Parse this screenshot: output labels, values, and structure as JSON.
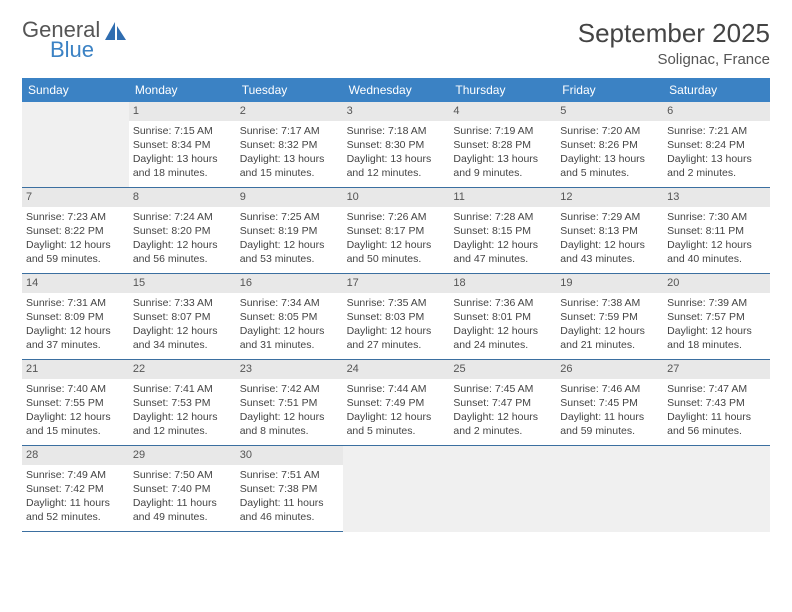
{
  "logo": {
    "part1": "General",
    "part2": "Blue",
    "icon_color": "#2f6db0"
  },
  "header": {
    "month": "September 2025",
    "location": "Solignac, France"
  },
  "colors": {
    "header_bg": "#3b82c4",
    "header_text": "#ffffff",
    "daynum_bg": "#e8e8e8",
    "empty_bg": "#f0f0f0",
    "border": "#3b6fa0",
    "text": "#444444"
  },
  "weekdays": [
    "Sunday",
    "Monday",
    "Tuesday",
    "Wednesday",
    "Thursday",
    "Friday",
    "Saturday"
  ],
  "leading_empty": 1,
  "trailing_empty": 4,
  "days": [
    {
      "n": 1,
      "sunrise": "7:15 AM",
      "sunset": "8:34 PM",
      "daylight": "13 hours and 18 minutes."
    },
    {
      "n": 2,
      "sunrise": "7:17 AM",
      "sunset": "8:32 PM",
      "daylight": "13 hours and 15 minutes."
    },
    {
      "n": 3,
      "sunrise": "7:18 AM",
      "sunset": "8:30 PM",
      "daylight": "13 hours and 12 minutes."
    },
    {
      "n": 4,
      "sunrise": "7:19 AM",
      "sunset": "8:28 PM",
      "daylight": "13 hours and 9 minutes."
    },
    {
      "n": 5,
      "sunrise": "7:20 AM",
      "sunset": "8:26 PM",
      "daylight": "13 hours and 5 minutes."
    },
    {
      "n": 6,
      "sunrise": "7:21 AM",
      "sunset": "8:24 PM",
      "daylight": "13 hours and 2 minutes."
    },
    {
      "n": 7,
      "sunrise": "7:23 AM",
      "sunset": "8:22 PM",
      "daylight": "12 hours and 59 minutes."
    },
    {
      "n": 8,
      "sunrise": "7:24 AM",
      "sunset": "8:20 PM",
      "daylight": "12 hours and 56 minutes."
    },
    {
      "n": 9,
      "sunrise": "7:25 AM",
      "sunset": "8:19 PM",
      "daylight": "12 hours and 53 minutes."
    },
    {
      "n": 10,
      "sunrise": "7:26 AM",
      "sunset": "8:17 PM",
      "daylight": "12 hours and 50 minutes."
    },
    {
      "n": 11,
      "sunrise": "7:28 AM",
      "sunset": "8:15 PM",
      "daylight": "12 hours and 47 minutes."
    },
    {
      "n": 12,
      "sunrise": "7:29 AM",
      "sunset": "8:13 PM",
      "daylight": "12 hours and 43 minutes."
    },
    {
      "n": 13,
      "sunrise": "7:30 AM",
      "sunset": "8:11 PM",
      "daylight": "12 hours and 40 minutes."
    },
    {
      "n": 14,
      "sunrise": "7:31 AM",
      "sunset": "8:09 PM",
      "daylight": "12 hours and 37 minutes."
    },
    {
      "n": 15,
      "sunrise": "7:33 AM",
      "sunset": "8:07 PM",
      "daylight": "12 hours and 34 minutes."
    },
    {
      "n": 16,
      "sunrise": "7:34 AM",
      "sunset": "8:05 PM",
      "daylight": "12 hours and 31 minutes."
    },
    {
      "n": 17,
      "sunrise": "7:35 AM",
      "sunset": "8:03 PM",
      "daylight": "12 hours and 27 minutes."
    },
    {
      "n": 18,
      "sunrise": "7:36 AM",
      "sunset": "8:01 PM",
      "daylight": "12 hours and 24 minutes."
    },
    {
      "n": 19,
      "sunrise": "7:38 AM",
      "sunset": "7:59 PM",
      "daylight": "12 hours and 21 minutes."
    },
    {
      "n": 20,
      "sunrise": "7:39 AM",
      "sunset": "7:57 PM",
      "daylight": "12 hours and 18 minutes."
    },
    {
      "n": 21,
      "sunrise": "7:40 AM",
      "sunset": "7:55 PM",
      "daylight": "12 hours and 15 minutes."
    },
    {
      "n": 22,
      "sunrise": "7:41 AM",
      "sunset": "7:53 PM",
      "daylight": "12 hours and 12 minutes."
    },
    {
      "n": 23,
      "sunrise": "7:42 AM",
      "sunset": "7:51 PM",
      "daylight": "12 hours and 8 minutes."
    },
    {
      "n": 24,
      "sunrise": "7:44 AM",
      "sunset": "7:49 PM",
      "daylight": "12 hours and 5 minutes."
    },
    {
      "n": 25,
      "sunrise": "7:45 AM",
      "sunset": "7:47 PM",
      "daylight": "12 hours and 2 minutes."
    },
    {
      "n": 26,
      "sunrise": "7:46 AM",
      "sunset": "7:45 PM",
      "daylight": "11 hours and 59 minutes."
    },
    {
      "n": 27,
      "sunrise": "7:47 AM",
      "sunset": "7:43 PM",
      "daylight": "11 hours and 56 minutes."
    },
    {
      "n": 28,
      "sunrise": "7:49 AM",
      "sunset": "7:42 PM",
      "daylight": "11 hours and 52 minutes."
    },
    {
      "n": 29,
      "sunrise": "7:50 AM",
      "sunset": "7:40 PM",
      "daylight": "11 hours and 49 minutes."
    },
    {
      "n": 30,
      "sunrise": "7:51 AM",
      "sunset": "7:38 PM",
      "daylight": "11 hours and 46 minutes."
    }
  ],
  "labels": {
    "sunrise": "Sunrise:",
    "sunset": "Sunset:",
    "daylight": "Daylight:"
  }
}
